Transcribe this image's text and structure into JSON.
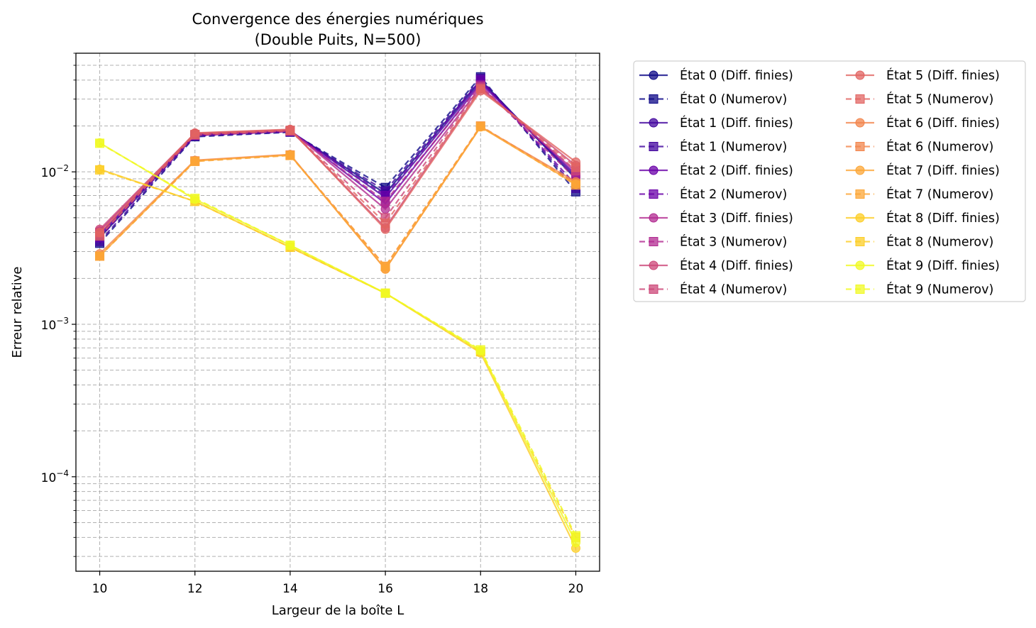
{
  "chart_data": {
    "type": "line",
    "title": "Convergence des énergies numériques",
    "subtitle": "(Double Puits, N=500)",
    "xlabel": "Largeur de la boîte L",
    "ylabel": "Erreur relative",
    "x": [
      10,
      12,
      14,
      16,
      18,
      20
    ],
    "xlim": [
      9.5,
      20.5
    ],
    "ylim": [
      2.4e-05,
      0.06
    ],
    "yscale": "log",
    "xticks": [
      "10",
      "12",
      "14",
      "16",
      "18",
      "20"
    ],
    "yticks": [
      {
        "base": "10",
        "exp": "−2",
        "value": 0.01
      },
      {
        "base": "10",
        "exp": "−3",
        "value": 0.001
      },
      {
        "base": "10",
        "exp": "−4",
        "value": 0.0001
      }
    ],
    "grid": true,
    "legend_position": "outside-right",
    "series": [
      {
        "name": "État 0 (Diff. finies)",
        "color": "#0d0887",
        "marker": "circle",
        "dash": false,
        "values": [
          0.0037,
          0.0175,
          0.0185,
          0.0072,
          0.04,
          0.009
        ]
      },
      {
        "name": "État 0 (Numerov)",
        "color": "#0d0887",
        "marker": "square",
        "dash": true,
        "values": [
          0.0034,
          0.017,
          0.0182,
          0.0079,
          0.042,
          0.0074
        ]
      },
      {
        "name": "État 1 (Diff. finies)",
        "color": "#41049d",
        "marker": "circle",
        "dash": false,
        "values": [
          0.0038,
          0.0176,
          0.0186,
          0.0068,
          0.039,
          0.0093
        ]
      },
      {
        "name": "État 1 (Numerov)",
        "color": "#41049d",
        "marker": "square",
        "dash": true,
        "values": [
          0.0035,
          0.0172,
          0.0183,
          0.0075,
          0.041,
          0.0078
        ]
      },
      {
        "name": "État 2 (Diff. finies)",
        "color": "#6a00a8",
        "marker": "circle",
        "dash": false,
        "values": [
          0.0039,
          0.0177,
          0.0187,
          0.0062,
          0.038,
          0.0096
        ]
      },
      {
        "name": "État 2 (Numerov)",
        "color": "#6a00a8",
        "marker": "square",
        "dash": true,
        "values": [
          0.0037,
          0.0173,
          0.0184,
          0.007,
          0.04,
          0.0082
        ]
      },
      {
        "name": "État 3 (Diff. finies)",
        "color": "#b12a90",
        "marker": "circle",
        "dash": false,
        "values": [
          0.0041,
          0.0178,
          0.0188,
          0.0057,
          0.036,
          0.01
        ]
      },
      {
        "name": "État 3 (Numerov)",
        "color": "#b12a90",
        "marker": "square",
        "dash": true,
        "values": [
          0.0039,
          0.0174,
          0.0185,
          0.0064,
          0.037,
          0.009
        ]
      },
      {
        "name": "État 4 (Diff. finies)",
        "color": "#cc4778",
        "marker": "circle",
        "dash": false,
        "values": [
          0.0042,
          0.0179,
          0.0189,
          0.0043,
          0.035,
          0.011
        ]
      },
      {
        "name": "État 4 (Numerov)",
        "color": "#cc4778",
        "marker": "square",
        "dash": true,
        "values": [
          0.004,
          0.0175,
          0.0186,
          0.005,
          0.036,
          0.0102
        ]
      },
      {
        "name": "État 5 (Diff. finies)",
        "color": "#e16462",
        "marker": "circle",
        "dash": false,
        "values": [
          0.004,
          0.018,
          0.019,
          0.0042,
          0.034,
          0.0116
        ]
      },
      {
        "name": "État 5 (Numerov)",
        "color": "#e16462",
        "marker": "square",
        "dash": true,
        "values": [
          0.0038,
          0.0176,
          0.0187,
          0.0046,
          0.035,
          0.0107
        ]
      },
      {
        "name": "État 6 (Diff. finies)",
        "color": "#f2844b",
        "marker": "circle",
        "dash": false,
        "values": [
          0.0029,
          0.0119,
          0.013,
          0.0023,
          0.0198,
          0.0086
        ]
      },
      {
        "name": "État 6 (Numerov)",
        "color": "#f2844b",
        "marker": "square",
        "dash": true,
        "values": [
          0.0028,
          0.0118,
          0.0129,
          0.0024,
          0.02,
          0.0084
        ]
      },
      {
        "name": "État 7 (Diff. finies)",
        "color": "#fca636",
        "marker": "circle",
        "dash": false,
        "values": [
          0.0028,
          0.0118,
          0.0129,
          0.0023,
          0.0197,
          0.0083
        ]
      },
      {
        "name": "État 7 (Numerov)",
        "color": "#fca636",
        "marker": "square",
        "dash": true,
        "values": [
          0.0028,
          0.0117,
          0.0128,
          0.0024,
          0.0199,
          0.0082
        ]
      },
      {
        "name": "État 8 (Diff. finies)",
        "color": "#fccd25",
        "marker": "circle",
        "dash": false,
        "values": [
          0.0104,
          0.0064,
          0.0032,
          0.0016,
          0.00065,
          3.4e-05
        ]
      },
      {
        "name": "État 8 (Numerov)",
        "color": "#fccd25",
        "marker": "square",
        "dash": true,
        "values": [
          0.0103,
          0.0064,
          0.0032,
          0.0016,
          0.00066,
          4e-05
        ]
      },
      {
        "name": "État 9 (Diff. finies)",
        "color": "#f0f921",
        "marker": "circle",
        "dash": false,
        "values": [
          0.0155,
          0.0066,
          0.0033,
          0.0016,
          0.00067,
          3.7e-05
        ]
      },
      {
        "name": "État 9 (Numerov)",
        "color": "#f0f921",
        "marker": "square",
        "dash": true,
        "values": [
          0.0154,
          0.0067,
          0.0033,
          0.0016,
          0.00068,
          4.1e-05
        ]
      }
    ]
  }
}
